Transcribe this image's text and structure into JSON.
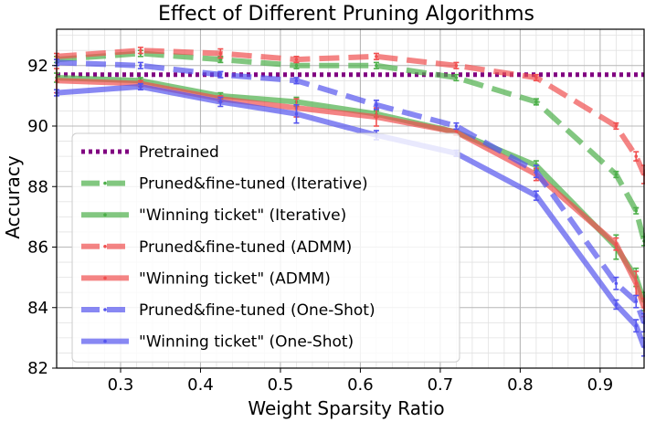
{
  "chart_data": {
    "type": "line",
    "title": "Effect of Different Pruning Algorithms",
    "xlabel": "Weight Sparsity Ratio",
    "ylabel": "Accuracy",
    "xlim": [
      0.22,
      0.955
    ],
    "ylim": [
      82,
      93.2
    ],
    "xticks": [
      0.3,
      0.4,
      0.5,
      0.6,
      0.7,
      0.8,
      0.9
    ],
    "xtick_labels": [
      "0.3",
      "0.4",
      "0.5",
      "0.6",
      "0.7",
      "0.8",
      "0.9"
    ],
    "yticks": [
      82,
      84,
      86,
      88,
      90,
      92
    ],
    "ytick_labels": [
      "82",
      "84",
      "86",
      "88",
      "90",
      "92"
    ],
    "grid": true,
    "minor_grid": true,
    "legend_position": "bottom-left",
    "series": [
      {
        "name": "Pretrained",
        "style": "dotted",
        "color": "#800080",
        "x": [
          0.22,
          0.955
        ],
        "y": [
          91.7,
          91.7
        ],
        "err": []
      },
      {
        "name": "Pruned&fine-tuned (Iterative)",
        "style": "dashed",
        "color": "#4daf4a",
        "x": [
          0.22,
          0.325,
          0.425,
          0.52,
          0.62,
          0.72,
          0.82,
          0.92,
          0.945,
          0.955
        ],
        "y": [
          92.2,
          92.4,
          92.2,
          92.0,
          92.0,
          91.6,
          90.8,
          88.4,
          87.2,
          86.2
        ],
        "err": [
          0.1,
          0.1,
          0.1,
          0.1,
          0.1,
          0.1,
          0.1,
          0.1,
          0.1,
          0.15
        ]
      },
      {
        "name": "\"Winning ticket\" (Iterative)",
        "style": "solid",
        "color": "#4daf4a",
        "x": [
          0.22,
          0.325,
          0.425,
          0.52,
          0.62,
          0.72,
          0.82,
          0.92,
          0.945,
          0.955
        ],
        "y": [
          91.6,
          91.5,
          91.0,
          90.8,
          90.4,
          89.8,
          88.7,
          86.0,
          85.0,
          84.2
        ],
        "err": [
          0.15,
          0.1,
          0.1,
          0.15,
          0.1,
          0.1,
          0.15,
          0.4,
          0.3,
          0.3
        ]
      },
      {
        "name": "Pruned&fine-tuned (ADMM)",
        "style": "dashed",
        "color": "#f05050",
        "x": [
          0.22,
          0.325,
          0.425,
          0.52,
          0.62,
          0.72,
          0.82,
          0.92,
          0.945,
          0.955
        ],
        "y": [
          92.3,
          92.5,
          92.4,
          92.2,
          92.3,
          92.0,
          91.6,
          90.0,
          89.0,
          88.4
        ],
        "err": [
          0.1,
          0.1,
          0.15,
          0.1,
          0.1,
          0.1,
          0.1,
          0.1,
          0.15,
          0.3
        ]
      },
      {
        "name": "\"Winning ticket\" (ADMM)",
        "style": "solid",
        "color": "#f05050",
        "x": [
          0.22,
          0.325,
          0.425,
          0.52,
          0.62,
          0.72,
          0.82,
          0.92,
          0.945,
          0.955
        ],
        "y": [
          91.5,
          91.4,
          90.9,
          90.6,
          90.3,
          89.8,
          88.4,
          86.1,
          84.8,
          84.0
        ],
        "err": [
          0.4,
          0.1,
          0.1,
          0.3,
          0.3,
          0.1,
          0.2,
          0.2,
          0.4,
          0.3
        ]
      },
      {
        "name": "Pruned&fine-tuned (One-Shot)",
        "style": "dashed",
        "color": "#5555ee",
        "x": [
          0.22,
          0.325,
          0.425,
          0.52,
          0.62,
          0.72,
          0.82,
          0.92,
          0.945,
          0.955
        ],
        "y": [
          92.1,
          92.0,
          91.7,
          91.5,
          90.7,
          90.0,
          88.5,
          84.8,
          84.2,
          83.5
        ],
        "err": [
          0.1,
          0.1,
          0.1,
          0.1,
          0.15,
          0.1,
          0.2,
          0.2,
          0.2,
          0.3
        ]
      },
      {
        "name": "\"Winning ticket\" (One-Shot)",
        "style": "solid",
        "color": "#5555ee",
        "x": [
          0.22,
          0.325,
          0.425,
          0.52,
          0.62,
          0.72,
          0.82,
          0.92,
          0.945,
          0.955
        ],
        "y": [
          91.1,
          91.3,
          90.8,
          90.4,
          89.7,
          89.1,
          87.7,
          84.1,
          83.4,
          82.7
        ],
        "err": [
          0.1,
          0.1,
          0.15,
          0.3,
          0.15,
          0.1,
          0.15,
          0.15,
          0.2,
          0.3
        ]
      }
    ]
  }
}
